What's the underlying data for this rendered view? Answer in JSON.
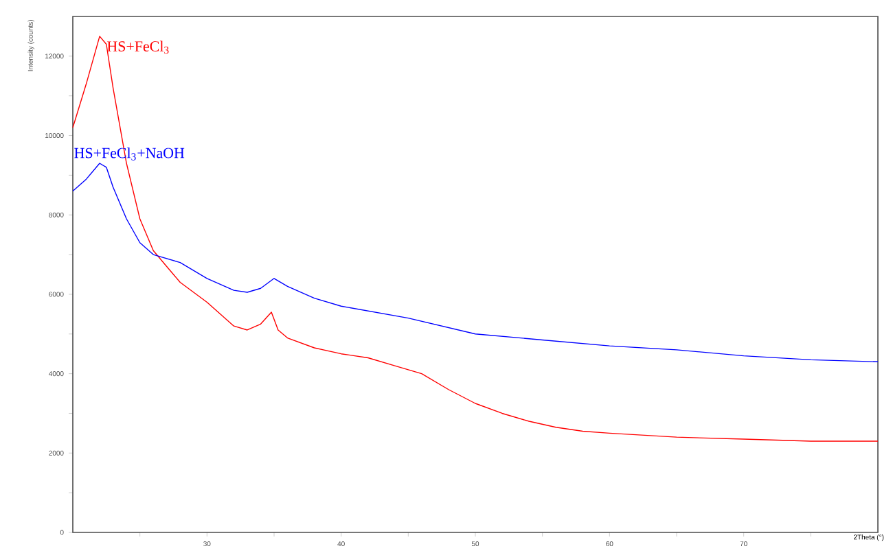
{
  "chart_data": {
    "type": "line",
    "xlabel": "2Theta (°)",
    "ylabel": "Intensity (counts)",
    "x": [
      20,
      21,
      22,
      22.5,
      23,
      24,
      25,
      26,
      27,
      28,
      30,
      32,
      33,
      34,
      34.8,
      35.3,
      36,
      38,
      40,
      42,
      44,
      46,
      48,
      50,
      52,
      54,
      56,
      58,
      60,
      65,
      70,
      75,
      80
    ],
    "series": [
      {
        "name": "HS+FeCl$_{3}$",
        "color": "#ff0000",
        "values": [
          10200,
          11300,
          12500,
          12300,
          11200,
          9300,
          7900,
          7100,
          6700,
          6300,
          5800,
          5200,
          5100,
          5250,
          5550,
          5100,
          4900,
          4650,
          4500,
          4400,
          4200,
          4000,
          3600,
          3250,
          3000,
          2800,
          2650,
          2550,
          2500,
          2400,
          2350,
          2300,
          2300
        ]
      },
      {
        "name": "HS+FeCl$_{3}$+NaOH",
        "color": "#0000ff",
        "x": [
          20,
          21,
          22,
          22.5,
          23,
          24,
          25,
          26,
          28,
          30,
          32,
          33,
          34,
          35,
          36,
          38,
          40,
          45,
          50,
          55,
          60,
          65,
          70,
          75,
          80
        ],
        "values": [
          8600,
          8900,
          9300,
          9200,
          8700,
          7900,
          7300,
          7000,
          6800,
          6400,
          6100,
          6050,
          6150,
          6400,
          6200,
          5900,
          5700,
          5400,
          5000,
          4850,
          4700,
          4600,
          4450,
          4350,
          4300
        ]
      }
    ],
    "xlim": [
      20,
      80
    ],
    "ylim": [
      0,
      13000
    ],
    "xticks": [
      {
        "value": 25,
        "label": null
      },
      30,
      {
        "value": 35,
        "label": null
      },
      40,
      {
        "value": 45,
        "label": null
      },
      50,
      {
        "value": 55,
        "label": null
      },
      60,
      {
        "value": 65,
        "label": null
      },
      70,
      {
        "value": 75,
        "label": null
      }
    ],
    "yticks": [
      0,
      {
        "value": 1000,
        "label": null
      },
      2000,
      {
        "value": 3000,
        "label": null
      },
      4000,
      {
        "value": 5000,
        "label": null
      },
      6000,
      {
        "value": 7000,
        "label": null
      },
      8000,
      {
        "value": 9000,
        "label": null
      },
      10000,
      {
        "value": 11000,
        "label": null
      },
      12000
    ],
    "grid": false,
    "legend": false,
    "marker": "none",
    "line_style": "solid"
  }
}
